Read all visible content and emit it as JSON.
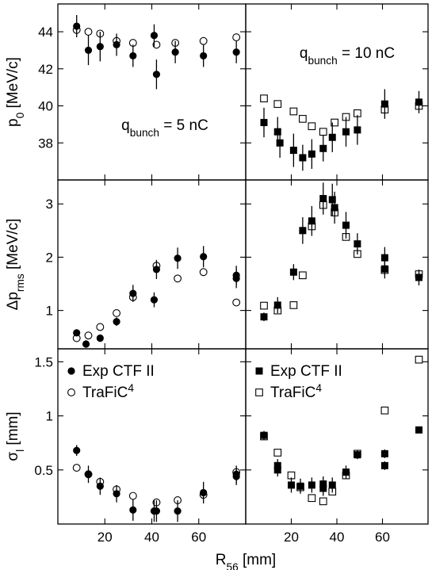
{
  "chart_data": {
    "type": "scatter",
    "xlabel": "R",
    "xlabel_sub": "56",
    "xlabel_unit": "[mm]",
    "xlim": [
      0,
      80
    ],
    "x_ticks": [
      20,
      40,
      60
    ],
    "grid": false,
    "columns": [
      {
        "label": "q",
        "label_sub": "bunch",
        "label_rest": " = 5 nC"
      },
      {
        "label": "q",
        "label_sub": "bunch",
        "label_rest": " = 10 nC"
      }
    ],
    "rows": [
      {
        "ylabel": "p",
        "ylabel_sub": "0",
        "ylabel_unit": " [MeV/c]",
        "ylim": [
          36,
          45.5
        ],
        "y_ticks": [
          38,
          40,
          42,
          44
        ],
        "panels": [
          {
            "series": [
              {
                "name": "Exp CTF II",
                "marker": "filled-circle",
                "x": [
                  8,
                  13,
                  18,
                  25,
                  32,
                  41,
                  42,
                  50,
                  62,
                  76
                ],
                "y": [
                  44.3,
                  43.0,
                  43.2,
                  43.3,
                  42.7,
                  43.8,
                  41.7,
                  42.9,
                  42.7,
                  42.9
                ],
                "err": [
                  0.6,
                  0.8,
                  0.8,
                  0.6,
                  0.6,
                  0.6,
                  0.8,
                  0.6,
                  0.6,
                  0.6
                ]
              },
              {
                "name": "TraFiC4",
                "marker": "open-circle",
                "x": [
                  8,
                  13,
                  18,
                  25,
                  32,
                  42,
                  50,
                  62,
                  76
                ],
                "y": [
                  44.1,
                  44.0,
                  43.9,
                  43.5,
                  43.4,
                  43.3,
                  43.4,
                  43.5,
                  43.7
                ]
              }
            ]
          },
          {
            "series": [
              {
                "name": "Exp CTF II",
                "marker": "filled-square",
                "x": [
                  8,
                  14,
                  15,
                  21,
                  25,
                  29,
                  34,
                  38,
                  44,
                  49,
                  61,
                  76
                ],
                "y": [
                  39.1,
                  38.6,
                  38.0,
                  37.6,
                  37.2,
                  37.4,
                  37.7,
                  38.3,
                  38.6,
                  38.7,
                  40.1,
                  40.2
                ],
                "err": [
                  0.8,
                  0.8,
                  0.8,
                  0.9,
                  0.7,
                  0.8,
                  0.7,
                  0.8,
                  0.8,
                  0.8,
                  0.8,
                  0.6
                ]
              },
              {
                "name": "TraFiC4",
                "marker": "open-square",
                "x": [
                  8,
                  14,
                  21,
                  25,
                  29,
                  34,
                  39,
                  44,
                  49,
                  61,
                  76
                ],
                "y": [
                  40.4,
                  40.1,
                  39.7,
                  39.3,
                  38.9,
                  38.6,
                  39.1,
                  39.4,
                  39.6,
                  39.8,
                  40.0
                ]
              }
            ]
          }
        ]
      },
      {
        "ylabel": "Δp",
        "ylabel_sub": "rms",
        "ylabel_unit": " [MeV/c]",
        "ylim": [
          0.28,
          3.45
        ],
        "y_ticks": [
          1,
          2,
          3
        ],
        "panels": [
          {
            "series": [
              {
                "name": "Exp CTF II",
                "marker": "filled-circle",
                "x": [
                  8,
                  12,
                  18,
                  25,
                  32,
                  41,
                  42,
                  51,
                  62,
                  76,
                  76
                ],
                "y": [
                  0.58,
                  0.37,
                  0.48,
                  0.79,
                  1.32,
                  1.2,
                  1.77,
                  1.98,
                  2.01,
                  1.6,
                  1.66
                ],
                "err": [
                  0.06,
                  0.07,
                  0.07,
                  0.08,
                  0.16,
                  0.14,
                  0.18,
                  0.2,
                  0.2,
                  0.18,
                  0.18
                ]
              },
              {
                "name": "TraFiC4",
                "marker": "open-circle",
                "x": [
                  8,
                  13,
                  18,
                  25,
                  32,
                  42,
                  51,
                  62,
                  76
                ],
                "y": [
                  0.48,
                  0.53,
                  0.69,
                  0.95,
                  1.25,
                  1.84,
                  1.6,
                  1.72,
                  1.15
                ]
              }
            ]
          },
          {
            "series": [
              {
                "name": "Exp CTF II",
                "marker": "filled-square",
                "x": [
                  8,
                  14,
                  21,
                  25,
                  29,
                  34,
                  38,
                  39,
                  44,
                  49,
                  61,
                  61,
                  76
                ],
                "y": [
                  0.88,
                  1.1,
                  1.72,
                  2.5,
                  2.68,
                  3.1,
                  3.08,
                  2.93,
                  2.6,
                  2.25,
                  1.99,
                  1.78,
                  1.62
                ],
                "err": [
                  0.08,
                  0.15,
                  0.15,
                  0.25,
                  0.28,
                  0.3,
                  0.3,
                  0.3,
                  0.25,
                  0.2,
                  0.2,
                  0.18,
                  0.15
                ]
              },
              {
                "name": "TraFiC4",
                "marker": "open-square",
                "x": [
                  8,
                  14,
                  21,
                  25,
                  29,
                  34,
                  39,
                  44,
                  49,
                  61,
                  76
                ],
                "y": [
                  1.09,
                  1.0,
                  1.1,
                  1.66,
                  2.58,
                  2.98,
                  2.84,
                  2.38,
                  2.06,
                  1.76,
                  1.68
                ]
              }
            ]
          }
        ]
      },
      {
        "ylabel": "σ",
        "ylabel_sub": "l",
        "ylabel_unit": " [mm]",
        "ylim": [
          0.0,
          1.62
        ],
        "y_ticks": [
          0.5,
          1,
          1.5
        ],
        "y_tick_labels": [
          "0.5",
          "1",
          "1.5"
        ],
        "panels": [
          {
            "series": [
              {
                "name": "Exp CTF II",
                "marker": "filled-circle",
                "x": [
                  8,
                  13,
                  18,
                  25,
                  32,
                  41,
                  42,
                  51,
                  62,
                  76,
                  76
                ],
                "y": [
                  0.68,
                  0.46,
                  0.35,
                  0.28,
                  0.13,
                  0.12,
                  0.12,
                  0.12,
                  0.29,
                  0.44,
                  0.46
                ],
                "err": [
                  0.05,
                  0.08,
                  0.08,
                  0.08,
                  0.1,
                  0.1,
                  0.1,
                  0.1,
                  0.1,
                  0.08,
                  0.08
                ]
              },
              {
                "name": "TraFiC4",
                "marker": "open-circle",
                "x": [
                  8,
                  13,
                  18,
                  25,
                  32,
                  42,
                  51,
                  62,
                  76
                ],
                "y": [
                  0.52,
                  0.46,
                  0.39,
                  0.32,
                  0.26,
                  0.2,
                  0.22,
                  0.27,
                  0.48
                ]
              }
            ]
          },
          {
            "series": [
              {
                "name": "Exp CTF II",
                "marker": "filled-square",
                "x": [
                  8,
                  14,
                  14,
                  20,
                  24,
                  29,
                  34,
                  34,
                  38,
                  44,
                  49,
                  61,
                  61,
                  76
                ],
                "y": [
                  0.82,
                  0.5,
                  0.54,
                  0.36,
                  0.35,
                  0.36,
                  0.37,
                  0.33,
                  0.36,
                  0.48,
                  0.64,
                  0.65,
                  0.54,
                  0.87
                ],
                "err": [
                  0.04,
                  0.06,
                  0.06,
                  0.07,
                  0.07,
                  0.07,
                  0.07,
                  0.07,
                  0.07,
                  0.06,
                  0.04,
                  0.04,
                  0.04,
                  0.03
                ]
              },
              {
                "name": "TraFiC4",
                "marker": "open-square",
                "x": [
                  8,
                  14,
                  20,
                  24,
                  29,
                  34,
                  38,
                  44,
                  49,
                  61,
                  76
                ],
                "y": [
                  0.81,
                  0.66,
                  0.45,
                  0.34,
                  0.24,
                  0.21,
                  0.3,
                  0.45,
                  0.65,
                  1.05,
                  1.52
                ]
              }
            ]
          }
        ]
      }
    ],
    "legends": [
      {
        "panel": "bottom-left",
        "placement": "top-left",
        "entries": [
          {
            "marker": "filled-circle",
            "label": "Exp CTF II",
            "sup": ""
          },
          {
            "marker": "open-circle",
            "label": "TraFiC",
            "sup": "4"
          }
        ]
      },
      {
        "panel": "bottom-right",
        "placement": "top-left",
        "entries": [
          {
            "marker": "filled-square",
            "label": "Exp CTF II",
            "sup": ""
          },
          {
            "marker": "open-square",
            "label": "TraFiC",
            "sup": "4"
          }
        ]
      }
    ]
  }
}
